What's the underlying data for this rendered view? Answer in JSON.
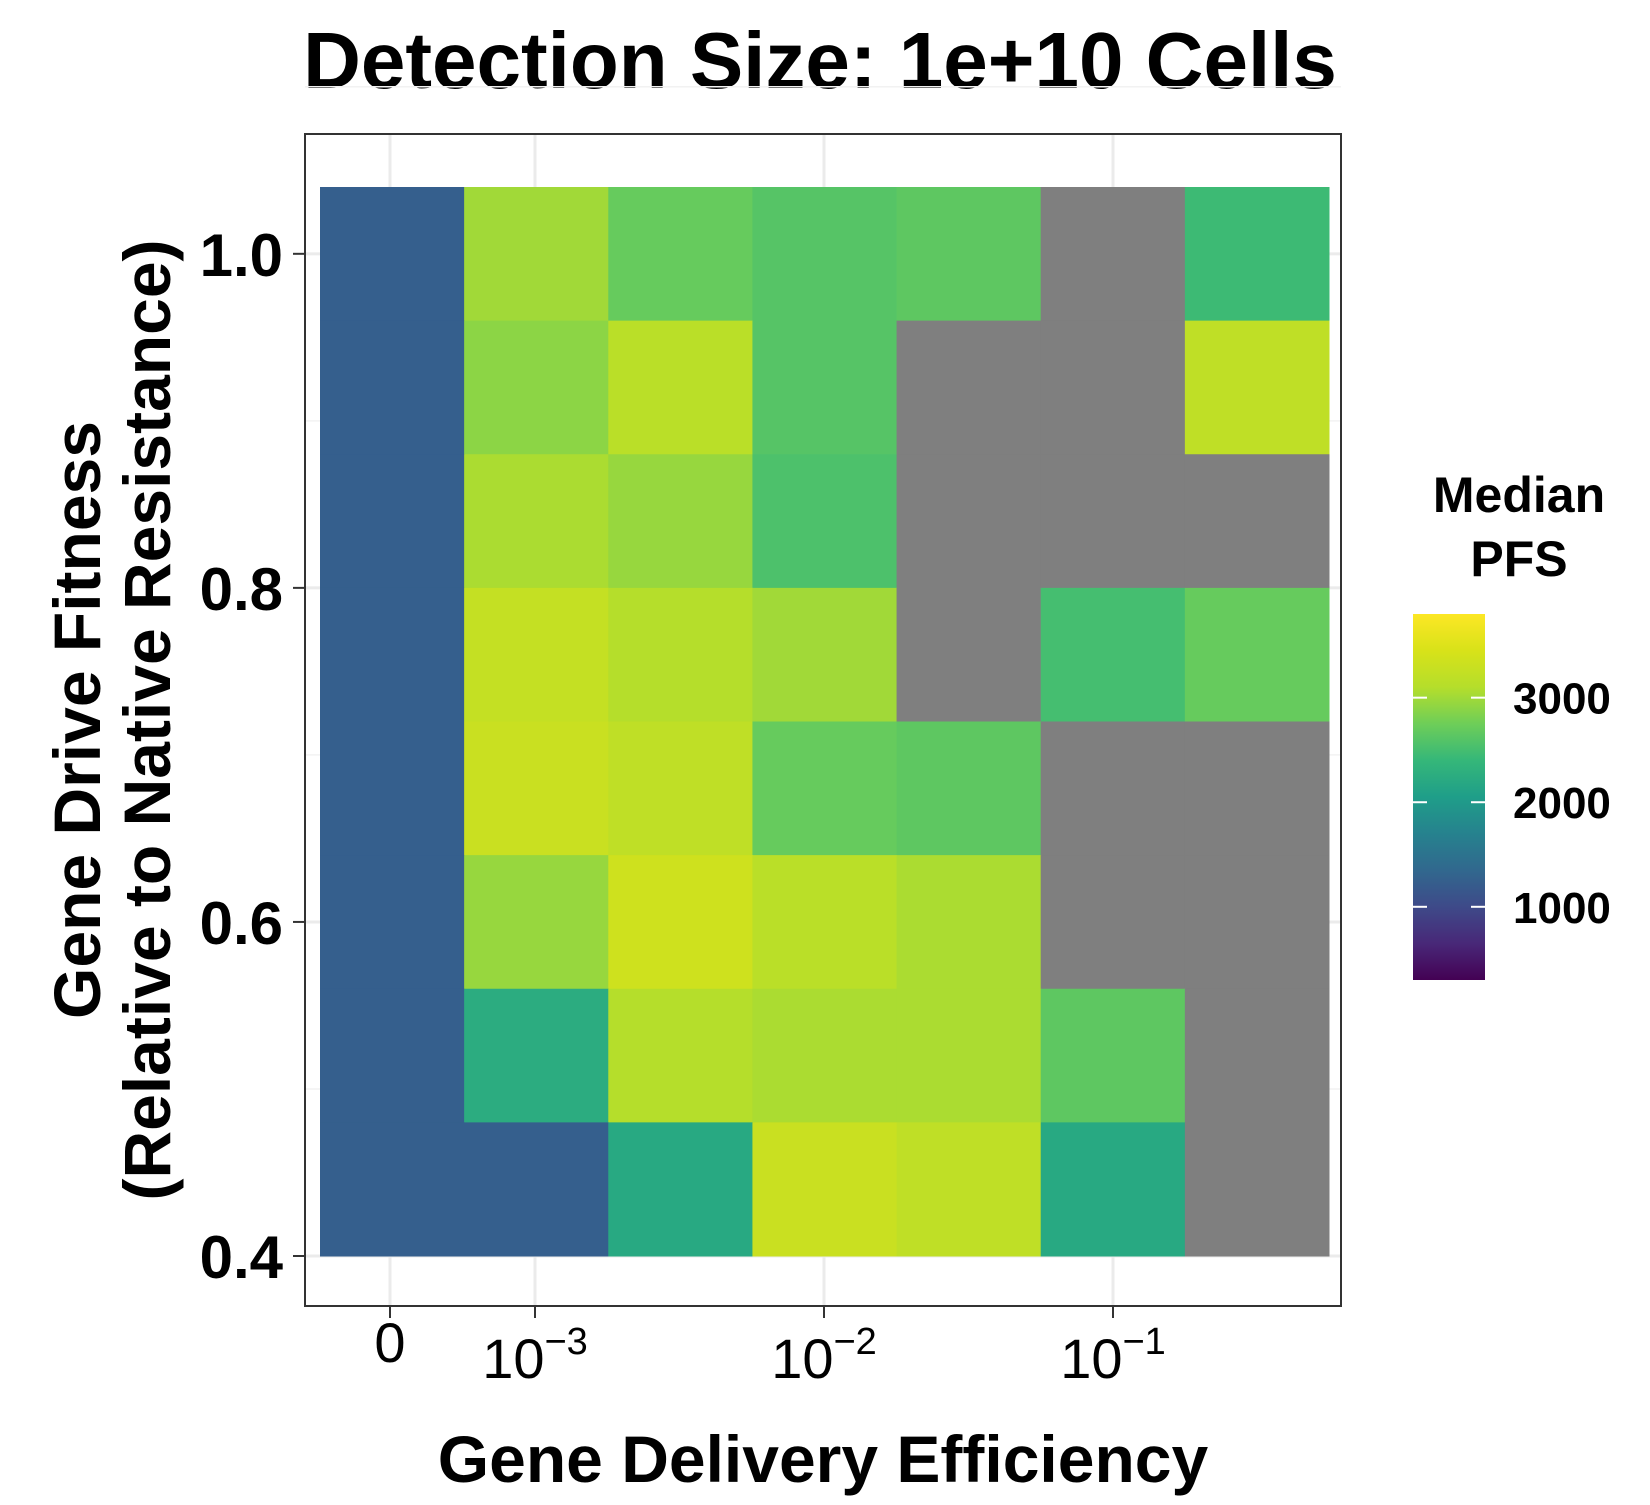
{
  "chart_data": {
    "type": "heatmap",
    "title": "Detection Size: 1e+10 Cells",
    "xlabel": "Gene Delivery Efficiency",
    "ylabel_line1": "Gene Drive Fitness",
    "ylabel_line2": "(Relative to Native Resistance)",
    "x_ticks": [
      {
        "label": "0",
        "value": 0
      },
      {
        "base": "10",
        "exp": "−3",
        "value": 0.001
      },
      {
        "base": "10",
        "exp": "−2",
        "value": 0.01
      },
      {
        "base": "10",
        "exp": "−1",
        "value": 0.1
      }
    ],
    "y_ticks": [
      "0.4",
      "0.6",
      "0.8",
      "1.0"
    ],
    "y_tick_values": [
      0.4,
      0.6,
      0.8,
      1.0
    ],
    "y_rows": [
      1.0,
      0.92,
      0.84,
      0.76,
      0.68,
      0.6,
      0.52,
      0.44
    ],
    "columns": 7,
    "values": [
      [
        1250,
        3000,
        2700,
        2600,
        2650,
        null,
        2450
      ],
      [
        1250,
        2900,
        3150,
        2600,
        null,
        null,
        3200
      ],
      [
        1250,
        3050,
        2950,
        2550,
        null,
        null,
        null
      ],
      [
        1250,
        3250,
        3100,
        3000,
        null,
        2500,
        2700
      ],
      [
        1250,
        3300,
        3200,
        2700,
        2650,
        null,
        null
      ],
      [
        1250,
        2950,
        3350,
        3150,
        3050,
        null,
        null
      ],
      [
        1250,
        2250,
        3100,
        3050,
        3050,
        2650,
        null
      ],
      [
        1250,
        1250,
        2200,
        3300,
        3200,
        2200,
        null
      ]
    ],
    "na_color": "#7f7f7f",
    "legend": {
      "title_line1": "Median",
      "title_line2": "PFS",
      "ticks": [
        "1000",
        "2000",
        "3000"
      ],
      "tick_values": [
        1000,
        2000,
        3000
      ],
      "min": 300,
      "max": 3800,
      "placement": "right"
    },
    "grid": true,
    "colormap": "viridis"
  }
}
